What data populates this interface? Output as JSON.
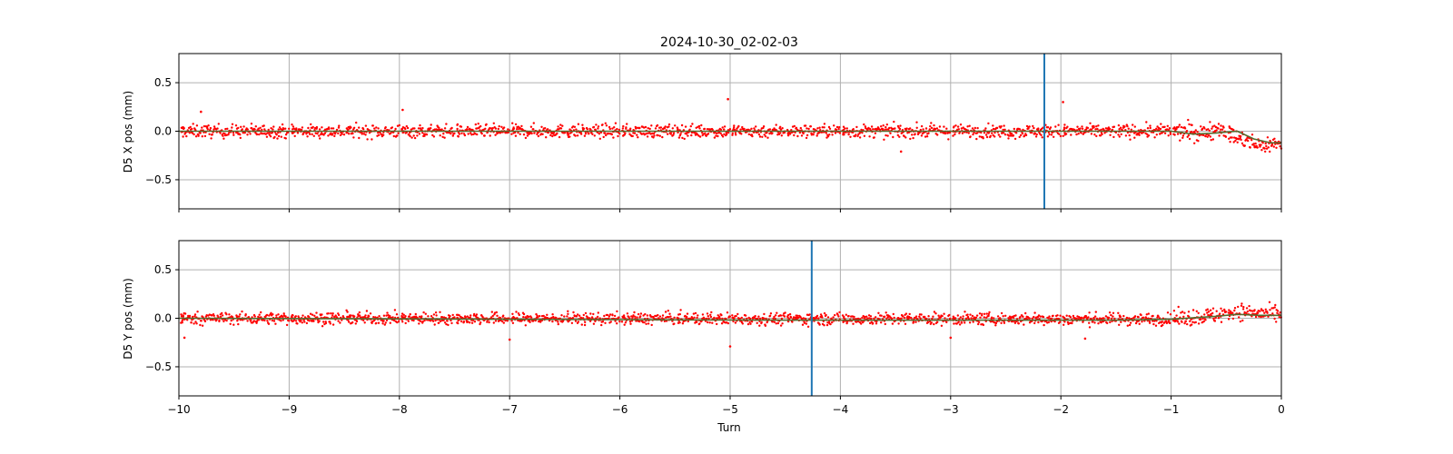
{
  "figure": {
    "title": "2024-10-30_02-02-03"
  },
  "chart_data": [
    {
      "type": "scatter",
      "ylabel": "D5 X pos (mm)",
      "xlabel": "",
      "xlim": [
        -10,
        0
      ],
      "ylim": [
        -0.8,
        0.8
      ],
      "xticks": [
        -10,
        -9,
        -8,
        -7,
        -6,
        -5,
        -4,
        -3,
        -2,
        -1,
        0
      ],
      "yticks": [
        -0.5,
        0.0,
        0.5
      ],
      "ytick_labels": [
        "−0.5",
        "0.0",
        "0.5"
      ],
      "grid": true,
      "vline_x": -2.15,
      "series": [
        {
          "kind": "scatter-red",
          "color": "#ff0000",
          "baseline": [
            [
              -10,
              0.0
            ],
            [
              -1.0,
              0.0
            ],
            [
              -0.7,
              -0.02
            ],
            [
              -0.55,
              0.05
            ],
            [
              -0.45,
              -0.05
            ],
            [
              -0.2,
              -0.15
            ],
            [
              0,
              -0.12
            ]
          ],
          "spread": 0.06,
          "outliers": [
            [
              -5.02,
              0.33
            ],
            [
              -1.98,
              0.3
            ],
            [
              -7.97,
              0.22
            ],
            [
              -3.45,
              -0.21
            ],
            [
              -9.8,
              0.2
            ]
          ]
        },
        {
          "kind": "smoothed",
          "color": "#556b2f",
          "points": [
            [
              -10,
              0.0
            ],
            [
              -1.0,
              0.0
            ],
            [
              -0.8,
              -0.03
            ],
            [
              -0.6,
              -0.02
            ],
            [
              -0.4,
              0.0
            ],
            [
              -0.25,
              -0.08
            ],
            [
              -0.1,
              -0.12
            ],
            [
              0,
              -0.12
            ]
          ]
        }
      ]
    },
    {
      "type": "scatter",
      "ylabel": "D5 Y pos (mm)",
      "xlabel": "Turn",
      "xlim": [
        -10,
        0
      ],
      "ylim": [
        -0.8,
        0.8
      ],
      "xticks": [
        -10,
        -9,
        -8,
        -7,
        -6,
        -5,
        -4,
        -3,
        -2,
        -1,
        0
      ],
      "xtick_labels": [
        "−10",
        "−9",
        "−8",
        "−7",
        "−6",
        "−5",
        "−4",
        "−3",
        "−2",
        "−1",
        "0"
      ],
      "yticks": [
        -0.5,
        0.0,
        0.5
      ],
      "ytick_labels": [
        "−0.5",
        "0.0",
        "0.5"
      ],
      "grid": true,
      "vline_x": -4.26,
      "series": [
        {
          "kind": "scatter-red",
          "color": "#ff0000",
          "baseline": [
            [
              -10,
              0.0
            ],
            [
              -1.0,
              -0.01
            ],
            [
              -0.6,
              0.03
            ],
            [
              -0.4,
              0.07
            ],
            [
              0,
              0.03
            ]
          ],
          "spread": 0.055,
          "outliers": [
            [
              -5.0,
              -0.29
            ],
            [
              -7.0,
              -0.22
            ],
            [
              -1.78,
              -0.21
            ],
            [
              -3.0,
              -0.2
            ],
            [
              -9.95,
              -0.2
            ]
          ]
        },
        {
          "kind": "smoothed",
          "color": "#556b2f",
          "points": [
            [
              -10,
              0.0
            ],
            [
              -4.5,
              -0.02
            ],
            [
              -1.5,
              -0.02
            ],
            [
              -1.0,
              -0.01
            ],
            [
              -0.6,
              0.02
            ],
            [
              -0.4,
              0.04
            ],
            [
              -0.2,
              0.03
            ],
            [
              0,
              0.03
            ]
          ]
        }
      ]
    }
  ],
  "colors": {
    "scatter": "#ff0000",
    "smooth": "#556b2f",
    "vline": "#1f77b4",
    "grid": "#b0b0b0"
  }
}
